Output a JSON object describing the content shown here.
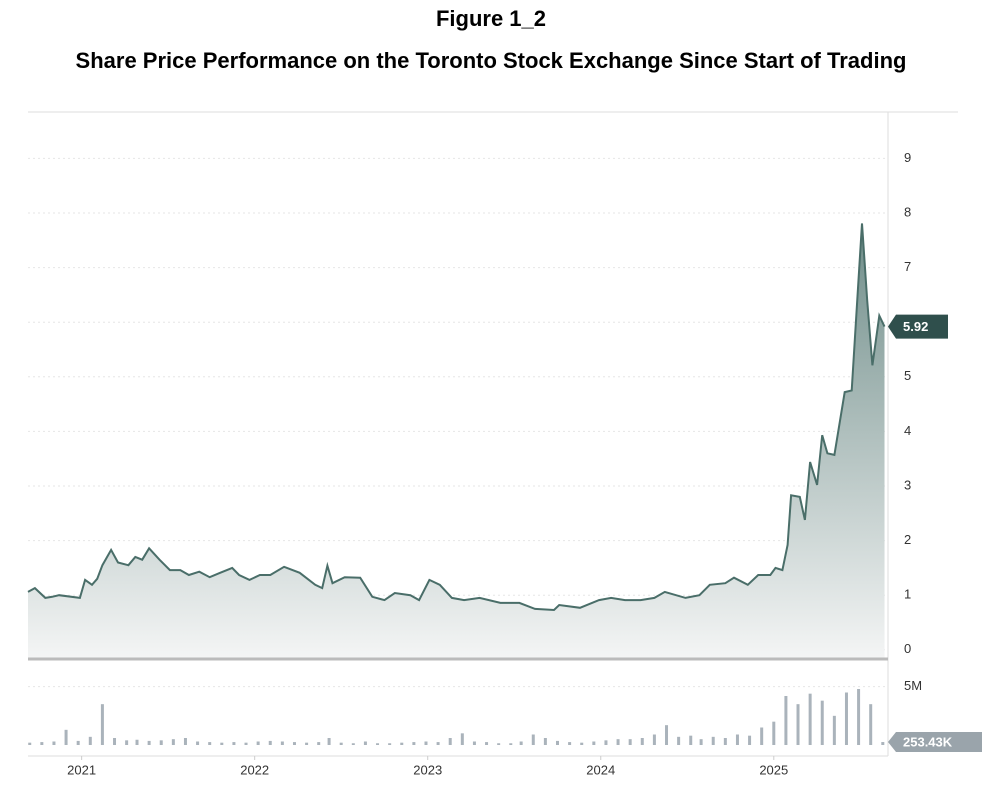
{
  "chart_data": [
    {
      "type": "area",
      "title": "Figure 1_2",
      "subtitle": "Share Price Performance on the Toronto Stock Exchange Since Start of Trading",
      "xlim": [
        2020.69,
        2025.66
      ],
      "xticks": [
        2021,
        2022,
        2023,
        2024,
        2025
      ],
      "ylim": [
        -0.15,
        9.85
      ],
      "yticks": [
        0,
        1,
        2,
        3,
        4,
        5,
        6,
        7,
        8,
        9
      ],
      "grid": true,
      "x": [
        2020.69,
        2020.73,
        2020.79,
        2020.83,
        2020.87,
        2020.99,
        2021.02,
        2021.06,
        2021.09,
        2021.12,
        2021.17,
        2021.21,
        2021.27,
        2021.31,
        2021.35,
        2021.39,
        2021.45,
        2021.51,
        2021.57,
        2021.62,
        2021.68,
        2021.74,
        2021.8,
        2021.87,
        2021.91,
        2021.97,
        2022.03,
        2022.09,
        2022.17,
        2022.26,
        2022.35,
        2022.39,
        2022.42,
        2022.45,
        2022.52,
        2022.61,
        2022.68,
        2022.75,
        2022.81,
        2022.9,
        2022.95,
        2023.01,
        2023.07,
        2023.14,
        2023.21,
        2023.3,
        2023.42,
        2023.53,
        2023.62,
        2023.73,
        2023.76,
        2023.88,
        2023.99,
        2024.06,
        2024.14,
        2024.23,
        2024.31,
        2024.37,
        2024.49,
        2024.57,
        2024.63,
        2024.72,
        2024.77,
        2024.85,
        2024.91,
        2024.98,
        2025.01,
        2025.05,
        2025.08,
        2025.1,
        2025.15,
        2025.18,
        2025.21,
        2025.25,
        2025.28,
        2025.31,
        2025.35,
        2025.41,
        2025.45,
        2025.48,
        2025.51,
        2025.54,
        2025.57,
        2025.61,
        2025.64
      ],
      "series": [
        {
          "color": "#4a6e69",
          "values": [
            1.06,
            1.13,
            0.95,
            0.97,
            1.0,
            0.95,
            1.28,
            1.19,
            1.3,
            1.55,
            1.83,
            1.6,
            1.55,
            1.7,
            1.65,
            1.86,
            1.65,
            1.46,
            1.46,
            1.37,
            1.43,
            1.33,
            1.41,
            1.5,
            1.37,
            1.28,
            1.37,
            1.37,
            1.52,
            1.41,
            1.19,
            1.13,
            1.54,
            1.22,
            1.33,
            1.32,
            0.97,
            0.91,
            1.04,
            1.0,
            0.91,
            1.28,
            1.19,
            0.95,
            0.91,
            0.95,
            0.86,
            0.86,
            0.75,
            0.73,
            0.82,
            0.77,
            0.91,
            0.95,
            0.91,
            0.91,
            0.95,
            1.06,
            0.95,
            1.0,
            1.19,
            1.22,
            1.32,
            1.19,
            1.37,
            1.37,
            1.5,
            1.46,
            1.92,
            2.83,
            2.8,
            2.38,
            3.44,
            3.02,
            3.93,
            3.6,
            3.57,
            4.72,
            4.75,
            6.3,
            7.81,
            6.4,
            5.21,
            6.12,
            5.92
          ]
        }
      ]
    },
    {
      "type": "bar",
      "ylim": [
        0,
        7200000
      ],
      "yticks": [
        {
          "value": 5000000,
          "label": "5M"
        }
      ],
      "color": "#aab3bb",
      "x": [
        2020.7,
        2020.77,
        2020.84,
        2020.91,
        2020.98,
        2021.05,
        2021.12,
        2021.19,
        2021.26,
        2021.32,
        2021.39,
        2021.46,
        2021.53,
        2021.6,
        2021.67,
        2021.74,
        2021.81,
        2021.88,
        2021.95,
        2022.02,
        2022.09,
        2022.16,
        2022.23,
        2022.3,
        2022.37,
        2022.43,
        2022.5,
        2022.57,
        2022.64,
        2022.71,
        2022.78,
        2022.85,
        2022.92,
        2022.99,
        2023.06,
        2023.13,
        2023.2,
        2023.27,
        2023.34,
        2023.41,
        2023.48,
        2023.54,
        2023.61,
        2023.68,
        2023.75,
        2023.82,
        2023.89,
        2023.96,
        2024.03,
        2024.1,
        2024.17,
        2024.24,
        2024.31,
        2024.38,
        2024.45,
        2024.52,
        2024.58,
        2024.65,
        2024.72,
        2024.79,
        2024.86,
        2024.93,
        2025.0,
        2025.07,
        2025.14,
        2025.21,
        2025.28,
        2025.35,
        2025.42,
        2025.49,
        2025.56,
        2025.63
      ],
      "values": [
        200000,
        250000,
        300000,
        1300000,
        350000,
        700000,
        3500000,
        600000,
        400000,
        450000,
        350000,
        400000,
        500000,
        600000,
        300000,
        250000,
        200000,
        250000,
        200000,
        300000,
        350000,
        300000,
        250000,
        200000,
        250000,
        600000,
        200000,
        150000,
        300000,
        150000,
        150000,
        200000,
        250000,
        300000,
        250000,
        600000,
        1000000,
        300000,
        250000,
        150000,
        150000,
        300000,
        900000,
        600000,
        350000,
        250000,
        200000,
        300000,
        400000,
        500000,
        500000,
        600000,
        900000,
        1700000,
        700000,
        800000,
        500000,
        700000,
        600000,
        900000,
        800000,
        1500000,
        2000000,
        4200000,
        3500000,
        4400000,
        3800000,
        2500000,
        4500000,
        4800000,
        3500000,
        253430
      ],
      "value_labels": [
        null,
        null,
        null,
        null,
        null,
        null,
        null,
        null,
        null,
        null,
        null,
        null,
        null,
        null,
        null,
        null,
        null,
        null,
        null,
        null,
        null,
        null,
        null,
        null,
        null,
        null,
        null,
        null,
        null,
        null,
        null,
        null,
        null,
        null,
        null,
        null,
        null,
        null,
        null,
        null,
        null,
        null,
        null,
        null,
        null,
        null,
        null,
        null,
        null,
        null,
        null,
        null,
        null,
        null,
        null,
        null,
        null,
        null,
        null,
        null,
        null,
        null,
        null,
        null,
        null,
        null,
        null,
        null,
        null,
        null,
        null,
        "253.43K"
      ]
    }
  ]
}
